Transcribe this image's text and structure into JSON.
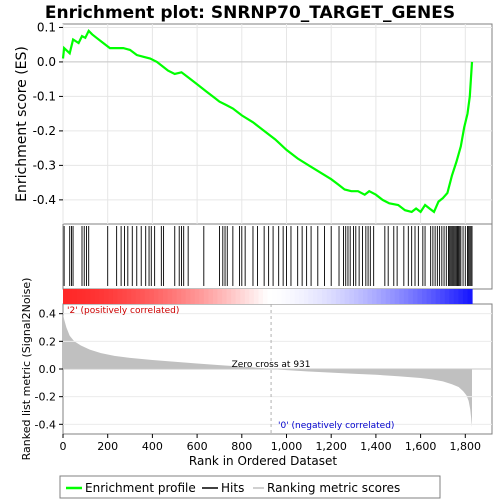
{
  "chart_data": [
    {
      "type": "line",
      "title": "Enrichment plot: SNRNP70_TARGET_GENES",
      "ylabel": "Enrichment score (ES)",
      "ylim": [
        -0.47,
        0.11
      ],
      "yticks": [
        0.1,
        0.0,
        -0.1,
        -0.2,
        -0.3,
        -0.4
      ],
      "ytick_labels": [
        "0.1",
        "0.0",
        "-0.1",
        "-0.2",
        "-0.3",
        "-0.4"
      ],
      "grid": true,
      "series": [
        {
          "name": "Enrichment profile",
          "color": "#00ff00",
          "x": [
            0,
            5,
            30,
            45,
            70,
            85,
            100,
            115,
            130,
            150,
            180,
            210,
            240,
            270,
            300,
            330,
            360,
            390,
            420,
            450,
            470,
            500,
            530,
            560,
            600,
            640,
            680,
            700,
            730,
            760,
            800,
            850,
            900,
            950,
            1000,
            1050,
            1100,
            1150,
            1200,
            1230,
            1260,
            1290,
            1320,
            1350,
            1370,
            1400,
            1430,
            1460,
            1500,
            1530,
            1560,
            1580,
            1600,
            1620,
            1640,
            1660,
            1680,
            1700,
            1720,
            1740,
            1760,
            1780,
            1795,
            1810,
            1820,
            1825,
            1830
          ],
          "y": [
            0.01,
            0.04,
            0.025,
            0.065,
            0.055,
            0.075,
            0.07,
            0.09,
            0.08,
            0.07,
            0.055,
            0.04,
            0.04,
            0.04,
            0.035,
            0.02,
            0.015,
            0.01,
            0.0,
            -0.015,
            -0.025,
            -0.035,
            -0.03,
            -0.045,
            -0.065,
            -0.085,
            -0.105,
            -0.115,
            -0.125,
            -0.135,
            -0.155,
            -0.175,
            -0.2,
            -0.225,
            -0.255,
            -0.28,
            -0.3,
            -0.32,
            -0.34,
            -0.355,
            -0.37,
            -0.375,
            -0.375,
            -0.385,
            -0.375,
            -0.385,
            -0.4,
            -0.41,
            -0.415,
            -0.43,
            -0.435,
            -0.425,
            -0.435,
            -0.415,
            -0.425,
            -0.435,
            -0.405,
            -0.395,
            -0.38,
            -0.33,
            -0.29,
            -0.245,
            -0.19,
            -0.15,
            -0.1,
            -0.05,
            0.0
          ]
        }
      ]
    },
    {
      "type": "scatter",
      "description_hidden": true,
      "series": [
        {
          "name": "Hits",
          "x": [
            5,
            30,
            38,
            45,
            85,
            95,
            105,
            115,
            200,
            240,
            260,
            275,
            290,
            310,
            330,
            350,
            370,
            385,
            395,
            410,
            440,
            450,
            500,
            520,
            530,
            540,
            560,
            630,
            700,
            715,
            725,
            735,
            760,
            790,
            800,
            815,
            850,
            870,
            900,
            920,
            940,
            965,
            985,
            1000,
            1020,
            1050,
            1070,
            1090,
            1110,
            1140,
            1170,
            1200,
            1235,
            1255,
            1265,
            1275,
            1285,
            1300,
            1310,
            1325,
            1340,
            1355,
            1365,
            1375,
            1390,
            1440,
            1455,
            1480,
            1495,
            1525,
            1545,
            1560,
            1575,
            1590,
            1610,
            1620,
            1645,
            1655,
            1665,
            1675,
            1685,
            1695,
            1705,
            1715,
            1725,
            1730,
            1735,
            1740,
            1745,
            1750,
            1755,
            1760,
            1765,
            1770,
            1775,
            1780,
            1790,
            1800,
            1810,
            1815,
            1820,
            1825,
            1830
          ]
        }
      ]
    },
    {
      "type": "area",
      "ylabel": "Ranked list metric (Signal2Noise)",
      "xlabel": "Rank in Ordered Dataset",
      "xlim": [
        0,
        1830
      ],
      "ylim": [
        -0.47,
        0.47
      ],
      "xticks": [
        0,
        200,
        400,
        600,
        800,
        1000,
        1200,
        1400,
        1600,
        1800
      ],
      "xtick_labels": [
        "0",
        "200",
        "400",
        "600",
        "800",
        "1,000",
        "1,200",
        "1,400",
        "1,600",
        "1,800"
      ],
      "yticks": [
        0.4,
        0.2,
        0.0,
        -0.2,
        -0.4
      ],
      "ytick_labels": [
        "0.4",
        "0.2",
        "0.0",
        "-0.2",
        "-0.4"
      ],
      "zero_cross": 931,
      "zero_cross_label": "Zero cross at 931",
      "pos_label": "'2' (positively correlated)",
      "neg_label": "'0' (negatively correlated)",
      "series": [
        {
          "name": "Ranking metric scores",
          "color": "#c0c0c0",
          "x": [
            0,
            5,
            15,
            30,
            50,
            80,
            120,
            170,
            230,
            300,
            400,
            500,
            600,
            700,
            800,
            900,
            931,
            1000,
            1100,
            1200,
            1300,
            1400,
            1500,
            1600,
            1650,
            1700,
            1740,
            1770,
            1790,
            1805,
            1815,
            1822,
            1826,
            1830
          ],
          "y": [
            0.4,
            0.36,
            0.3,
            0.24,
            0.2,
            0.17,
            0.14,
            0.115,
            0.095,
            0.08,
            0.065,
            0.052,
            0.04,
            0.028,
            0.017,
            0.006,
            0.0,
            -0.008,
            -0.018,
            -0.026,
            -0.034,
            -0.042,
            -0.052,
            -0.065,
            -0.075,
            -0.09,
            -0.11,
            -0.13,
            -0.16,
            -0.19,
            -0.23,
            -0.29,
            -0.35,
            -0.42
          ]
        }
      ]
    }
  ],
  "legend": {
    "items": [
      {
        "label": "Enrichment profile",
        "color": "#00ff00"
      },
      {
        "label": "Hits",
        "color": "#000000"
      },
      {
        "label": "Ranking metric scores",
        "color": "#c0c0c0"
      }
    ]
  }
}
